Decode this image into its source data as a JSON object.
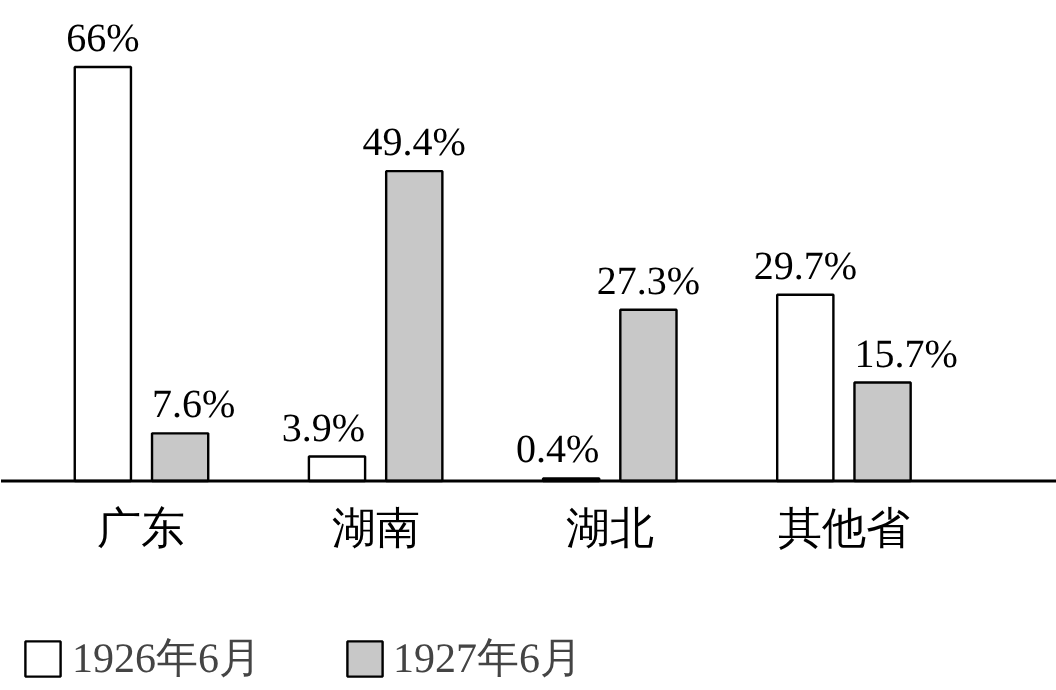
{
  "chart_data": {
    "type": "bar",
    "categories": [
      "广东",
      "湖南",
      "湖北",
      "其他省"
    ],
    "series": [
      {
        "name": "1926年6月",
        "color": "#ffffff",
        "values": [
          66,
          3.9,
          0.4,
          29.7
        ],
        "value_labels": [
          "66%",
          "3.9%",
          "0.4%",
          "29.7%"
        ]
      },
      {
        "name": "1927年6月",
        "color": "#c8c8c8",
        "values": [
          7.6,
          49.4,
          27.3,
          15.7
        ],
        "value_labels": [
          "7.6%",
          "49.4%",
          "27.3%",
          "15.7%"
        ]
      }
    ],
    "legend": "bottom",
    "grid": false
  }
}
